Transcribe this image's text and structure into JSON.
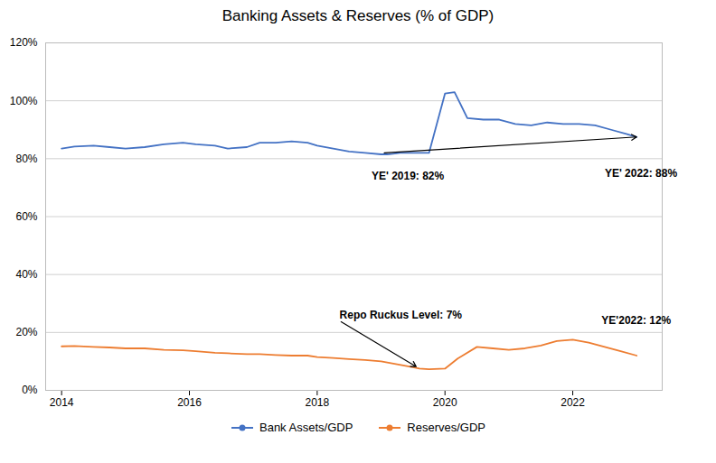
{
  "chart_data": {
    "type": "line",
    "title": "Banking Assets & Reserves (% of GDP)",
    "series": [
      {
        "name": "Bank Assets/GDP",
        "color": "#4472c4",
        "x": [
          2014.0,
          2014.2,
          2014.5,
          2014.75,
          2015.0,
          2015.3,
          2015.6,
          2015.9,
          2016.1,
          2016.4,
          2016.6,
          2016.9,
          2017.1,
          2017.35,
          2017.6,
          2017.85,
          2018.0,
          2018.25,
          2018.5,
          2018.75,
          2019.0,
          2019.1,
          2019.3,
          2019.5,
          2019.75,
          2020.0,
          2020.15,
          2020.35,
          2020.6,
          2020.85,
          2021.1,
          2021.35,
          2021.6,
          2021.85,
          2022.1,
          2022.35,
          2022.6,
          2022.85,
          2023.0
        ],
        "values": [
          83.5,
          84.2,
          84.5,
          84.0,
          83.5,
          84.0,
          85.0,
          85.5,
          85.0,
          84.5,
          83.5,
          84.0,
          85.5,
          85.5,
          86.0,
          85.5,
          84.5,
          83.5,
          82.5,
          82.0,
          81.5,
          81.5,
          82.0,
          82.0,
          82.0,
          102.5,
          103.0,
          94.0,
          93.5,
          93.5,
          92.0,
          91.5,
          92.5,
          92.0,
          92.0,
          91.5,
          90.0,
          88.5,
          87.5
        ]
      },
      {
        "name": "Reserves/GDP",
        "color": "#ed7d31",
        "x": [
          2014.0,
          2014.2,
          2014.5,
          2014.75,
          2015.0,
          2015.3,
          2015.6,
          2015.9,
          2016.1,
          2016.4,
          2016.6,
          2016.9,
          2017.1,
          2017.35,
          2017.6,
          2017.85,
          2018.0,
          2018.25,
          2018.5,
          2018.75,
          2019.0,
          2019.25,
          2019.5,
          2019.6,
          2019.75,
          2020.0,
          2020.2,
          2020.5,
          2020.75,
          2021.0,
          2021.25,
          2021.5,
          2021.75,
          2022.0,
          2022.25,
          2022.5,
          2022.75,
          2023.0
        ],
        "values": [
          15.2,
          15.3,
          15.0,
          14.8,
          14.5,
          14.5,
          14.0,
          13.8,
          13.5,
          13.0,
          12.8,
          12.5,
          12.5,
          12.2,
          12.0,
          12.0,
          11.5,
          11.2,
          10.8,
          10.5,
          10.0,
          9.0,
          8.0,
          7.5,
          7.3,
          7.5,
          11.0,
          15.0,
          14.5,
          14.0,
          14.5,
          15.5,
          17.0,
          17.5,
          16.5,
          15.0,
          13.5,
          12.0
        ]
      }
    ],
    "xlim": [
      2013.75,
      2023.4
    ],
    "xticks": [
      2014,
      2016,
      2018,
      2020,
      2022
    ],
    "ylim": [
      0,
      120
    ],
    "yticks": [
      {
        "value": 0,
        "label": "0%"
      },
      {
        "value": 20,
        "label": "20%"
      },
      {
        "value": 40,
        "label": "40%"
      },
      {
        "value": 60,
        "label": "60%"
      },
      {
        "value": 80,
        "label": "80%"
      },
      {
        "value": 100,
        "label": "100%"
      },
      {
        "value": 120,
        "label": "120%"
      }
    ],
    "grid": "y",
    "legend": "bottom",
    "annotations": [
      {
        "text": "YE' 2019: 82%",
        "x": 2018.85,
        "y": 74
      },
      {
        "text": "YE' 2022: 88%",
        "x": 2022.5,
        "y": 75
      },
      {
        "text": "Repo Ruckus Level: 7%",
        "x": 2018.35,
        "y": 24,
        "arrow_x": 2019.55,
        "arrow_y": 8.2
      },
      {
        "text": "YE'2022: 12%",
        "x": 2022.45,
        "y": 24
      }
    ],
    "arrows": [
      {
        "x1": 2019.05,
        "y1": 82,
        "x2": 2023.0,
        "y2": 87.5
      }
    ]
  }
}
